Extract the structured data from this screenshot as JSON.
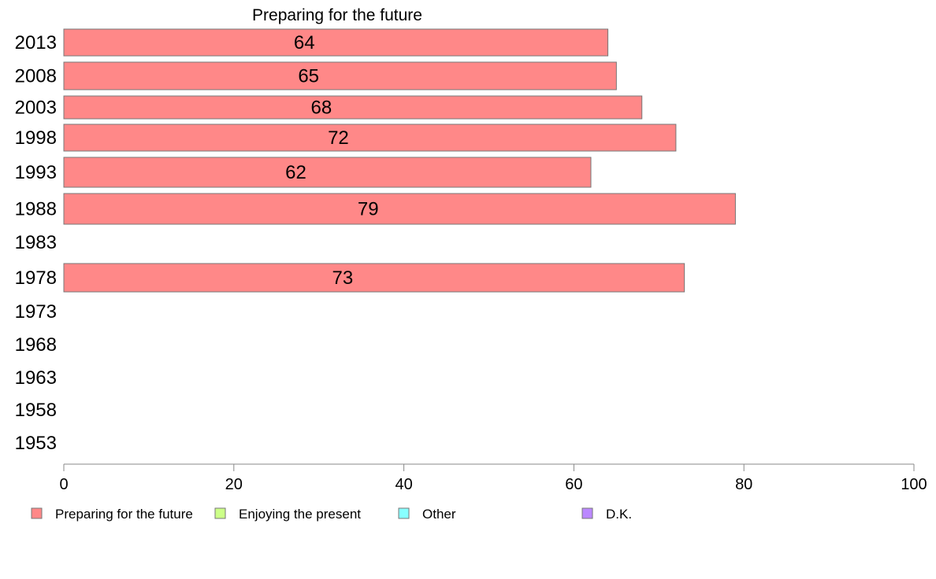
{
  "chart_data": {
    "type": "bar",
    "orientation": "horizontal",
    "title": "Preparing for the future",
    "categories": [
      "2013",
      "2008",
      "2003",
      "1998",
      "1993",
      "1988",
      "1983",
      "1978",
      "1973",
      "1968",
      "1963",
      "1958",
      "1953"
    ],
    "series": [
      {
        "name": "Preparing for the future",
        "color": "#ff8888",
        "values": [
          64,
          65,
          68,
          72,
          62,
          79,
          null,
          73,
          null,
          null,
          null,
          null,
          null
        ]
      }
    ],
    "xlim": [
      0,
      100
    ],
    "xticks": [
      0,
      20,
      40,
      60,
      80,
      100
    ],
    "grid": false,
    "legend": {
      "placement": "bottom",
      "entries": [
        {
          "label": "Preparing for the future",
          "color": "#ff8888"
        },
        {
          "label": "Enjoying the present",
          "color": "#ccff88"
        },
        {
          "label": "Other",
          "color": "#88ffff"
        },
        {
          "label": "D.K.",
          "color": "#bb88ff"
        }
      ]
    }
  }
}
